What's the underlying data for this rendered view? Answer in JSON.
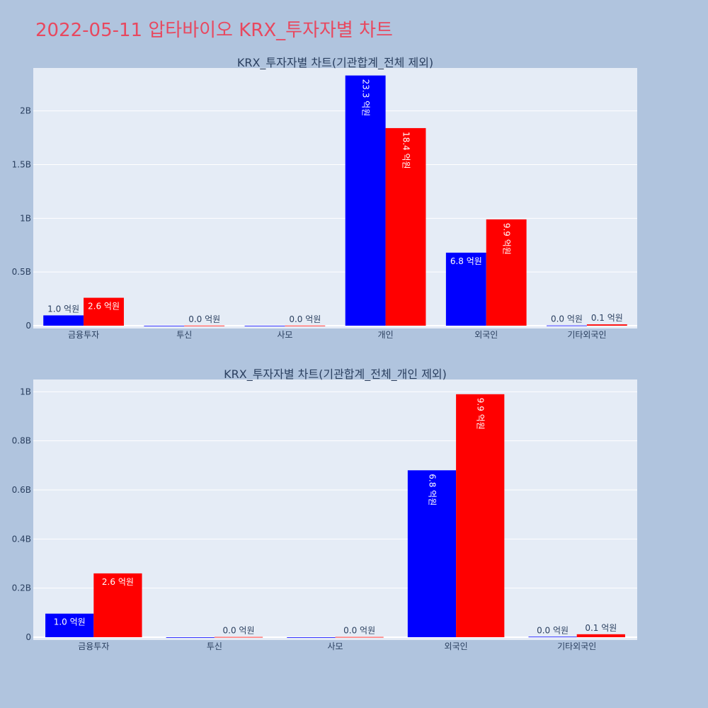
{
  "page_title": "2022-05-11 압타바이오 KRX_투자자별 차트",
  "colors": {
    "background": "#b0c4de",
    "plot_bg": "#e5ecf6",
    "series1": "#0000ff",
    "series2": "#ff0000",
    "title": "#e8485f"
  },
  "chart_data": [
    {
      "type": "bar",
      "title": "KRX_투자자별 차트(기관합계_전체 제외)",
      "categories": [
        "금융투자",
        "투신",
        "사모",
        "개인",
        "외국인",
        "기타외국인"
      ],
      "series": [
        {
          "values": [
            96000000,
            0,
            0,
            2330000000,
            680000000,
            2000000
          ],
          "labels": [
            "1.0 억원",
            "",
            "",
            "23.3 억원",
            "6.8 억원",
            "0.0 억원"
          ]
        },
        {
          "values": [
            260000000,
            1000000,
            1000000,
            1840000000,
            990000000,
            12000000
          ],
          "labels": [
            "2.6 억원",
            "0.0 억원",
            "0.0 억원",
            "18.4 억원",
            "9.9 억원",
            "0.1 억원"
          ]
        }
      ],
      "ylim": [
        0,
        2400000000
      ],
      "yticks": [
        0,
        500000000,
        1000000000,
        1500000000,
        2000000000
      ],
      "ytick_labels": [
        "0",
        "0.5B",
        "1B",
        "1.5B",
        "2B"
      ],
      "grid": true
    },
    {
      "type": "bar",
      "title": "KRX_투자자별 차트(기관합계_전체_개인 제외)",
      "categories": [
        "금융투자",
        "투신",
        "사모",
        "외국인",
        "기타외국인"
      ],
      "series": [
        {
          "values": [
            96000000,
            0,
            0,
            680000000,
            2000000
          ],
          "labels": [
            "1.0 억원",
            "",
            "",
            "6.8 억원",
            "0.0 억원"
          ]
        },
        {
          "values": [
            260000000,
            1000000,
            1000000,
            990000000,
            12000000
          ],
          "labels": [
            "2.6 억원",
            "0.0 억원",
            "0.0 억원",
            "9.9 억원",
            "0.1 억원"
          ]
        }
      ],
      "ylim": [
        0,
        1050000000
      ],
      "yticks": [
        0,
        200000000,
        400000000,
        600000000,
        800000000,
        1000000000
      ],
      "ytick_labels": [
        "0",
        "0.2B",
        "0.4B",
        "0.6B",
        "0.8B",
        "1B"
      ],
      "grid": true
    }
  ]
}
